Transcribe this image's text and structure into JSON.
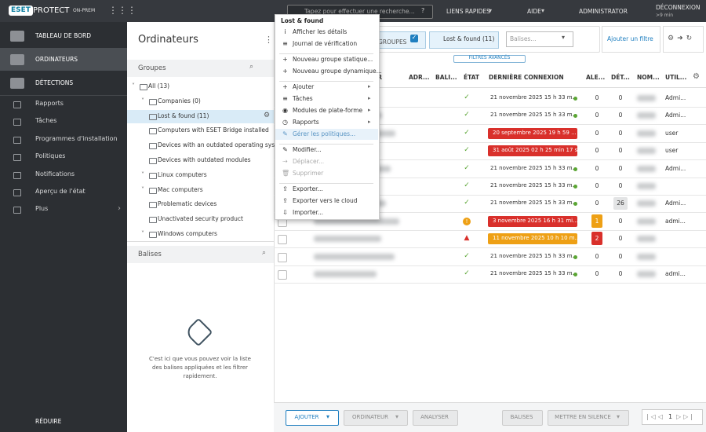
{
  "topbar": {
    "brand": "ESET",
    "product": "PROTECT",
    "edition": "ON-PREM",
    "search_placeholder": "Tapez pour effectuer une recherche...",
    "quick_links": "LIENS RAPIDES",
    "help": "AIDE",
    "user": "ADMINISTRATOR",
    "logout": "DÉCONNEXION",
    "session": ">9 min"
  },
  "sidebar": {
    "primary": [
      "TABLEAU DE BORD",
      "ORDINATEURS",
      "DÉTECTIONS"
    ],
    "active": 1,
    "secondary": [
      "Rapports",
      "Tâches",
      "Programmes d'installation",
      "Politiques",
      "Notifications",
      "Aperçu de l'état",
      "Plus"
    ],
    "collapse": "RÉDUIRE"
  },
  "groups_panel": {
    "title": "Ordinateurs",
    "heading": "Groupes",
    "selected": "Lost & found (11)",
    "tree": [
      {
        "label": "All (13)",
        "children": [
          {
            "label": "Companies (0)",
            "children": [
              {
                "label": "Lost & found (11)"
              },
              {
                "label": "Computers with ESET Bridge installed"
              },
              {
                "label": "Devices with an outdated operating system"
              },
              {
                "label": "Devices with outdated modules"
              }
            ]
          },
          {
            "label": "Linux computers"
          },
          {
            "label": "Mac computers",
            "children": [
              {
                "label": "Problematic devices"
              },
              {
                "label": "Unactivated security product"
              }
            ]
          },
          {
            "label": "Windows computers"
          }
        ]
      }
    ]
  },
  "tags_panel": {
    "title": "Balises",
    "empty_text": "C'est ici que vous pouvez voir la liste des balises appliquées et les filtrer rapidement."
  },
  "context_menu": {
    "title": "Lost & found",
    "sections": [
      [
        {
          "label": "Afficher les détails",
          "icon": "i"
        },
        {
          "label": "Journal de vérification",
          "icon": "≡"
        }
      ],
      [
        {
          "label": "Nouveau groupe statique...",
          "icon": "+"
        },
        {
          "label": "Nouveau groupe dynamique...",
          "icon": "+"
        }
      ],
      [
        {
          "label": "Ajouter",
          "icon": "+",
          "submenu": true
        },
        {
          "label": "Tâches",
          "icon": "≡",
          "submenu": true
        },
        {
          "label": "Modules de plate-forme",
          "icon": "◉",
          "submenu": true
        },
        {
          "label": "Rapports",
          "icon": "◷",
          "submenu": true
        },
        {
          "label": "Gérer les politiques...",
          "icon": "✎",
          "highlighted": true
        }
      ],
      [
        {
          "label": "Modifier...",
          "icon": "✎"
        },
        {
          "label": "Déplacer...",
          "icon": "⇢",
          "disabled": true
        },
        {
          "label": "Supprimer",
          "icon": "🗑",
          "disabled": true
        }
      ],
      [
        {
          "label": "Exporter...",
          "icon": "⇪"
        },
        {
          "label": "Exporter vers le cloud",
          "icon": "⇪"
        },
        {
          "label": "Importer...",
          "icon": "⇩"
        }
      ]
    ]
  },
  "toolbar": {
    "groups_button": "GROUPES",
    "group_filter": "Lost & found (11)",
    "tags_placeholder": "Balises...",
    "add_filter": "Ajouter un filtre",
    "advanced_filters": "FILTRES AVANCÉS"
  },
  "table": {
    "columns": [
      "EUR",
      "ADR...",
      "BALI...",
      "ÉTAT",
      "DERNIÈRE CONNEXION",
      "ALE...",
      "DÉT...",
      "NOM...",
      "UTIL..."
    ],
    "rows": [
      {
        "status": "ok",
        "last_connection": "21 novembre 2025 15 h 33 m...",
        "connection_state": "ok",
        "alerts": 0,
        "detections": 0,
        "user": "Admi..."
      },
      {
        "status": "ok",
        "last_connection": "21 novembre 2025 15 h 33 m...",
        "connection_state": "ok",
        "alerts": 0,
        "detections": 0,
        "user": "Admi..."
      },
      {
        "status": "ok",
        "last_connection": "20 septembre 2025 19 h 59 ...",
        "connection_state": "error",
        "alerts": 0,
        "detections": 0,
        "user": "user"
      },
      {
        "status": "ok",
        "last_connection": "31 août 2025 02 h 25 min 17 s",
        "connection_state": "error",
        "alerts": 0,
        "detections": 0,
        "user": "user"
      },
      {
        "status": "ok",
        "last_connection": "21 novembre 2025 15 h 33 m...",
        "connection_state": "ok",
        "alerts": 0,
        "detections": 0,
        "user": "Admi..."
      },
      {
        "status": "ok",
        "last_connection": "21 novembre 2025 15 h 33 m...",
        "connection_state": "ok",
        "alerts": 0,
        "detections": 0,
        "user": null
      },
      {
        "status": "ok",
        "last_connection": "21 novembre 2025 15 h 33 m...",
        "connection_state": "ok",
        "alerts": 0,
        "detections": 26,
        "user": "Admi..."
      },
      {
        "status": "warning",
        "last_connection": "3 novembre 2025 16 h 31 mi...",
        "connection_state": "error",
        "alerts": 1,
        "detections": 0,
        "user": "admi..."
      },
      {
        "status": "error",
        "last_connection": "11 novembre 2025 10 h 10 m...",
        "connection_state": "warning",
        "alerts": 2,
        "detections": 0,
        "user": null
      },
      {
        "status": "ok",
        "last_connection": "21 novembre 2025 15 h 33 m...",
        "connection_state": "ok",
        "alerts": 0,
        "detections": 0,
        "user": null
      },
      {
        "status": "ok",
        "last_connection": "21 novembre 2025 15 h 33 m...",
        "connection_state": "ok",
        "alerts": 0,
        "detections": 0,
        "user": "admi..."
      }
    ]
  },
  "footer": {
    "buttons": [
      "AJOUTER",
      "ORDINATEUR",
      "ANALYSER",
      "BALISES",
      "METTRE EN SILENCE"
    ],
    "page": 1
  }
}
